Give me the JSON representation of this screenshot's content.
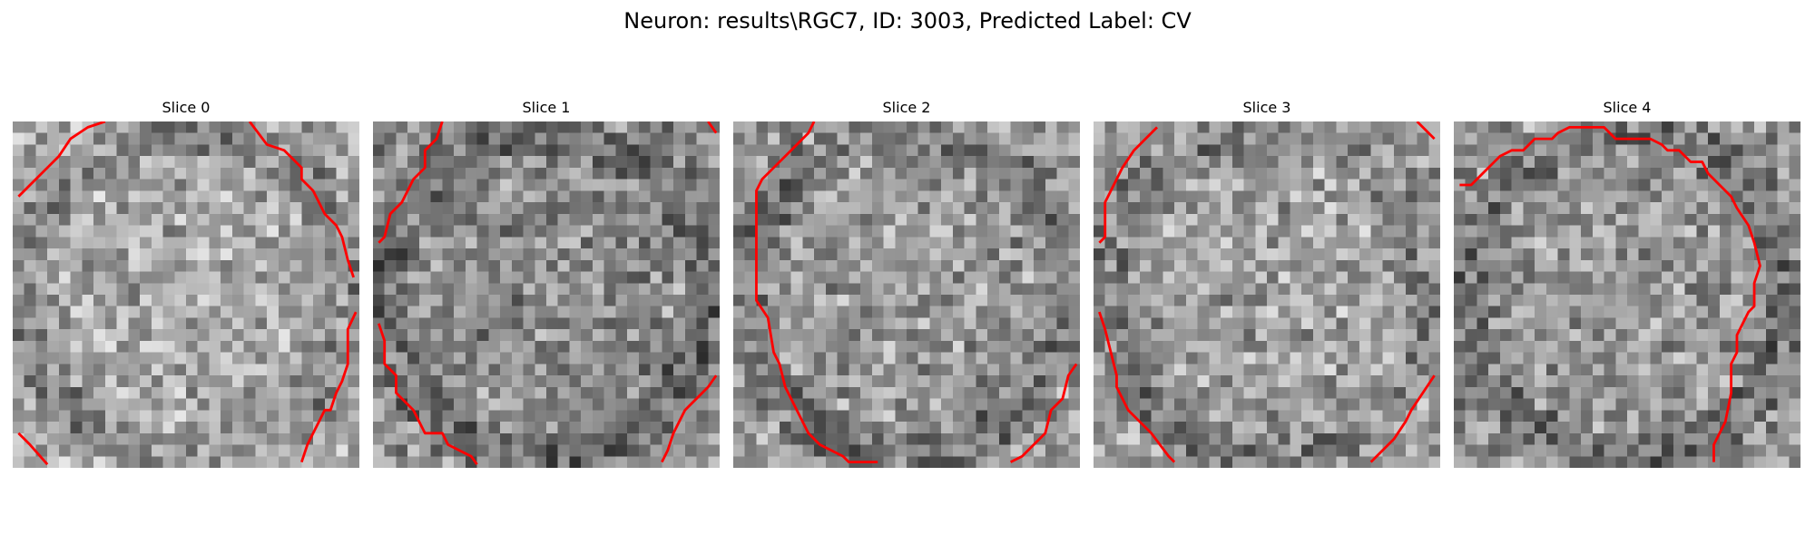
{
  "figure": {
    "title": "Neuron: results\\RGC7, ID: 3003, Predicted Label: CV"
  },
  "colors": {
    "contour": "#ff0000",
    "background": "#ffffff",
    "colormap": "gray"
  },
  "panels": [
    {
      "title": "Slice 0",
      "grid": 30,
      "mean_intensity": 0.66,
      "contours": [
        [
          [
            0.5,
            6.5
          ],
          [
            1.5,
            5.5
          ],
          [
            3,
            4
          ],
          [
            4,
            3
          ],
          [
            5,
            1.5
          ],
          [
            6.5,
            0.5
          ],
          [
            8,
            0
          ]
        ],
        [
          [
            20.5,
            0
          ],
          [
            22,
            2
          ],
          [
            23.5,
            2.5
          ],
          [
            25,
            4
          ],
          [
            25,
            5
          ],
          [
            26,
            6
          ],
          [
            27,
            8
          ],
          [
            28,
            9
          ],
          [
            28.5,
            10
          ],
          [
            29,
            12
          ],
          [
            29.5,
            13.5
          ]
        ],
        [
          [
            29.7,
            16.5
          ],
          [
            29,
            18
          ],
          [
            29,
            21
          ],
          [
            28.5,
            22.5
          ],
          [
            28,
            23.5
          ],
          [
            27.5,
            25
          ],
          [
            27,
            25
          ],
          [
            26.5,
            26
          ],
          [
            26,
            27
          ],
          [
            25.5,
            28
          ],
          [
            25,
            29.5
          ]
        ],
        [
          [
            0.5,
            27
          ],
          [
            1.5,
            28
          ],
          [
            3,
            29.7
          ]
        ]
      ]
    },
    {
      "title": "Slice 1",
      "grid": 30,
      "mean_intensity": 0.55,
      "contours": [
        [
          [
            6,
            0
          ],
          [
            5.5,
            1.5
          ],
          [
            4.5,
            2.5
          ],
          [
            4.5,
            4
          ],
          [
            3.5,
            5
          ],
          [
            3,
            6
          ],
          [
            2.5,
            7
          ],
          [
            1.5,
            8
          ],
          [
            1,
            10
          ],
          [
            0.5,
            10.5
          ]
        ],
        [
          [
            29,
            0
          ],
          [
            29.7,
            1
          ]
        ],
        [
          [
            0.5,
            17.5
          ],
          [
            1,
            19
          ],
          [
            1,
            21
          ],
          [
            2,
            22
          ],
          [
            2,
            23.5
          ],
          [
            3,
            24.5
          ],
          [
            3.5,
            25
          ],
          [
            4,
            26
          ],
          [
            4.5,
            27
          ],
          [
            6,
            27
          ],
          [
            6.5,
            28
          ],
          [
            7.5,
            28.5
          ],
          [
            8.5,
            29
          ],
          [
            9,
            29.7
          ]
        ],
        [
          [
            29.7,
            22
          ],
          [
            29,
            23
          ],
          [
            28,
            24
          ],
          [
            27,
            25
          ],
          [
            26,
            27
          ],
          [
            25.5,
            28.5
          ],
          [
            25,
            29.5
          ]
        ]
      ]
    },
    {
      "title": "Slice 2",
      "grid": 30,
      "mean_intensity": 0.6,
      "contours": [
        [
          [
            7,
            0
          ],
          [
            6.5,
            1
          ],
          [
            5.5,
            2
          ],
          [
            4.5,
            3
          ],
          [
            3.5,
            4
          ],
          [
            2.5,
            5
          ],
          [
            2,
            6
          ],
          [
            2,
            15.5
          ],
          [
            3,
            17
          ],
          [
            3.5,
            20
          ],
          [
            4,
            21
          ],
          [
            4.5,
            23
          ],
          [
            5,
            24
          ],
          [
            5.5,
            25
          ],
          [
            6.5,
            27
          ],
          [
            7.5,
            28
          ],
          [
            9.5,
            29
          ],
          [
            10,
            29.5
          ],
          [
            12.5,
            29.5
          ]
        ],
        [
          [
            29.7,
            21
          ],
          [
            29,
            22
          ],
          [
            28.5,
            24
          ],
          [
            27.5,
            25
          ],
          [
            27,
            27
          ],
          [
            26,
            28
          ],
          [
            25,
            29
          ],
          [
            24,
            29.5
          ]
        ]
      ]
    },
    {
      "title": "Slice 3",
      "grid": 30,
      "mean_intensity": 0.63,
      "contours": [
        [
          [
            5.5,
            0.5
          ],
          [
            4.5,
            1.5
          ],
          [
            3.5,
            2.5
          ],
          [
            2.5,
            4
          ],
          [
            1.5,
            6
          ],
          [
            1,
            7
          ],
          [
            1,
            10
          ],
          [
            0.5,
            10.5
          ]
        ],
        [
          [
            28,
            0
          ],
          [
            29.5,
            1.5
          ]
        ],
        [
          [
            0.5,
            16.5
          ],
          [
            1,
            18
          ],
          [
            1.5,
            20
          ],
          [
            2,
            22
          ],
          [
            2,
            23
          ],
          [
            2.5,
            24
          ],
          [
            3,
            25
          ],
          [
            4,
            26
          ],
          [
            5,
            27
          ],
          [
            6.5,
            29
          ],
          [
            7,
            29.5
          ]
        ],
        [
          [
            29.5,
            22
          ],
          [
            28.5,
            23.5
          ],
          [
            27.5,
            25
          ],
          [
            27,
            26
          ],
          [
            26,
            27.5
          ],
          [
            25,
            28.5
          ],
          [
            24,
            29.5
          ]
        ]
      ]
    },
    {
      "title": "Slice 4",
      "grid": 30,
      "mean_intensity": 0.58,
      "contours": [
        [
          [
            0.5,
            5.5
          ],
          [
            1.5,
            5.5
          ],
          [
            2.5,
            4.5
          ],
          [
            3.5,
            3.5
          ],
          [
            4,
            3
          ],
          [
            5,
            2.5
          ],
          [
            6,
            2.5
          ],
          [
            6.5,
            2
          ],
          [
            7,
            1.5
          ],
          [
            8.5,
            1.5
          ],
          [
            9,
            1
          ],
          [
            10,
            0.5
          ],
          [
            13,
            0.5
          ],
          [
            14,
            1.5
          ],
          [
            17,
            1.5
          ],
          [
            18,
            2
          ],
          [
            18.5,
            2.5
          ],
          [
            19.5,
            2.5
          ],
          [
            20.5,
            3.5
          ],
          [
            21.5,
            3.5
          ],
          [
            22,
            4.5
          ],
          [
            23,
            5.5
          ],
          [
            24,
            6.5
          ],
          [
            24.5,
            7.5
          ],
          [
            25.5,
            9
          ],
          [
            26,
            10.5
          ],
          [
            26.5,
            12.5
          ],
          [
            26,
            14
          ],
          [
            26,
            16
          ],
          [
            25.5,
            16.5
          ],
          [
            25,
            17.5
          ],
          [
            24.5,
            18.5
          ],
          [
            24.5,
            20
          ],
          [
            24,
            21
          ],
          [
            24,
            23.5
          ],
          [
            23.5,
            26
          ],
          [
            23,
            27
          ],
          [
            22.5,
            28
          ],
          [
            22.5,
            29.5
          ]
        ]
      ]
    }
  ]
}
